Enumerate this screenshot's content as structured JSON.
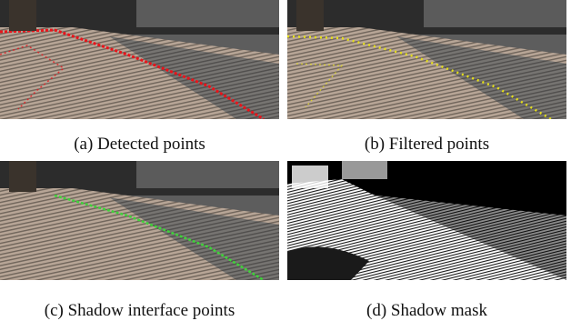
{
  "figure": {
    "panels": [
      {
        "id": "a",
        "caption": "(a) Detected points",
        "overlay_color": "#e8141b"
      },
      {
        "id": "b",
        "caption": "(b) Filtered points",
        "overlay_color": "#e6e01a"
      },
      {
        "id": "c",
        "caption": "(c) Shadow interface points",
        "overlay_color": "#3fd23a"
      },
      {
        "id": "d",
        "caption": "(d) Shadow mask",
        "overlay_color": "#ffffff"
      }
    ]
  }
}
